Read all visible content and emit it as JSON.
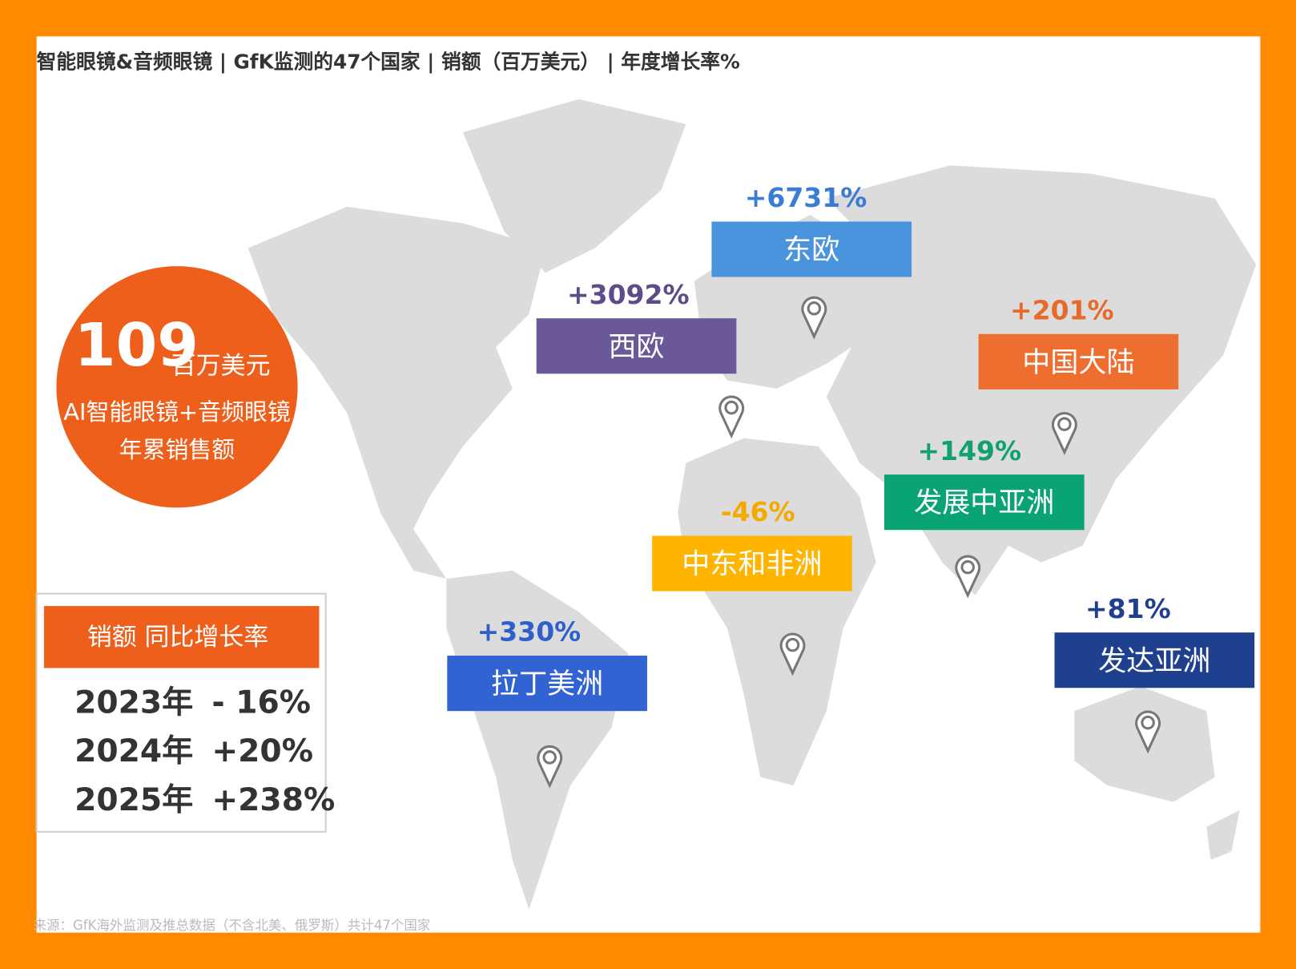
{
  "header": {
    "title": "智能眼镜&音频眼镜 | GfK监测的47个国家 | 销额（百万美元） | 年度增长率%"
  },
  "summary": {
    "value": "109",
    "unit": "百万美元",
    "line1": "AI智能眼镜+音频眼镜",
    "line2": "年累销售额"
  },
  "table": {
    "header": "销额 同比增长率",
    "rows": [
      [
        "2023年",
        "- 16%"
      ],
      [
        "2024年",
        "+20%"
      ],
      [
        "2025年",
        "+238%"
      ]
    ]
  },
  "regions": [
    {
      "name": "东欧",
      "growth": "+6731%",
      "color": "#4a94dd",
      "text_color": "#3a7bd5"
    },
    {
      "name": "西欧",
      "growth": "+3092%",
      "color": "#6a5898",
      "text_color": "#5d4b8a"
    },
    {
      "name": "中国大陆",
      "growth": "+201%",
      "color": "#ee6e30",
      "text_color": "#e86a2a"
    },
    {
      "name": "发展中亚洲",
      "growth": "+149%",
      "color": "#0aa374",
      "text_color": "#12a06e"
    },
    {
      "name": "中东和非洲",
      "growth": "-46%",
      "color": "#ffb400",
      "text_color": "#f5a800"
    },
    {
      "name": "拉丁美洲",
      "growth": "+330%",
      "color": "#3163d2",
      "text_color": "#2e5fcc"
    },
    {
      "name": "发达亚洲",
      "growth": "+81%",
      "color": "#1f3f8f",
      "text_color": "#1f3f8f"
    }
  ],
  "source": "来源：GfK海外监测及推总数据（不含北美、俄罗斯）共计47个国家"
}
